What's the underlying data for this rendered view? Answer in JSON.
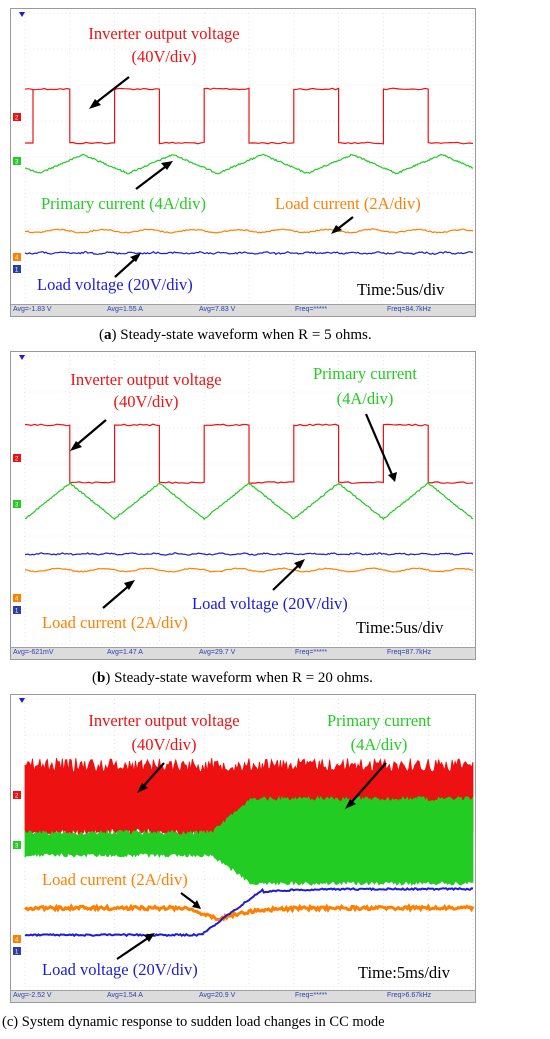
{
  "colors": {
    "voltage": "#ee1111",
    "primary": "#22cc22",
    "load_current": "#ff8000",
    "load_voltage": "#1c1cd0",
    "grid": "#cfcfcf",
    "status_text": "#2a3ea8"
  },
  "panels": [
    {
      "id": "a",
      "caption_tag": "a",
      "caption_text": "Steady-state waveform when R = 5 ohms.",
      "time_label": "Time:5us/div",
      "status": [
        "Avg=-1.83 V",
        "Avg=1.55 A",
        "Avg=7.83 V",
        "Freq=*****",
        "Freq=84.7kHz"
      ],
      "annotations": {
        "inverter": [
          "Inverter output voltage",
          "(40V/div)"
        ],
        "primary": [
          "Primary current (4A/div)"
        ],
        "load_current": [
          "Load current (2A/div)"
        ],
        "load_voltage": [
          "Load voltage (20V/div)"
        ]
      }
    },
    {
      "id": "b",
      "caption_tag": "b",
      "caption_text": "Steady-state waveform when R = 20 ohms.",
      "time_label": "Time:5us/div",
      "status": [
        "Avg=-621mV",
        "Avg=1.47 A",
        "Avg=29.7 V",
        "Freq=*****",
        "Freq=87.7kHz"
      ],
      "annotations": {
        "inverter": [
          "Inverter output voltage",
          "(40V/div)"
        ],
        "primary": [
          "Primary current",
          "(4A/div)"
        ],
        "load_current": [
          "Load current (2A/div)"
        ],
        "load_voltage": [
          "Load voltage (20V/div)"
        ]
      }
    },
    {
      "id": "c",
      "caption_tag": "c",
      "caption_text": "System dynamic response to sudden load changes in CC mode",
      "time_label": "Time:5ms/div",
      "status": [
        "Avg=-2.52 V",
        "Avg=1.54 A",
        "Avg=20.9 V",
        "Freq=*****",
        "Freq>6.67kHz"
      ],
      "annotations": {
        "inverter": [
          "Inverter output voltage",
          "(40V/div)"
        ],
        "primary": [
          "Primary current",
          "(4A/div)"
        ],
        "load_current": [
          "Load current (2A/div)"
        ],
        "load_voltage": [
          "Load voltage (20V/div)"
        ]
      }
    }
  ],
  "chart_data": [
    {
      "type": "line",
      "title": "",
      "xlabel": "Time:5us/div",
      "x_divisions": 10,
      "series": [
        {
          "name": "Inverter output voltage",
          "scale": "40V/div",
          "shape": "square",
          "periods_shown": 5,
          "duty_cycle": 0.5,
          "peak_to_peak_div": 1.0
        },
        {
          "name": "Primary current",
          "scale": "4A/div",
          "shape": "triangle",
          "periods_shown": 5,
          "peak_to_peak_div": 0.5
        },
        {
          "name": "Load current",
          "scale": "2A/div",
          "shape": "dc-with-ripple",
          "level_div": 0.0
        },
        {
          "name": "Load voltage",
          "scale": "20V/div",
          "shape": "dc",
          "level_div": 0.0
        }
      ],
      "measurements": [
        "Avg=-1.83 V",
        "Avg=1.55 A",
        "Avg=7.83 V",
        "Freq=*****",
        "Freq=84.7kHz"
      ]
    },
    {
      "type": "line",
      "title": "",
      "xlabel": "Time:5us/div",
      "x_divisions": 10,
      "series": [
        {
          "name": "Inverter output voltage",
          "scale": "40V/div",
          "shape": "square",
          "periods_shown": 5,
          "duty_cycle": 0.5,
          "peak_to_peak_div": 1.0
        },
        {
          "name": "Primary current",
          "scale": "4A/div",
          "shape": "triangle",
          "periods_shown": 5,
          "peak_to_peak_div": 1.1
        },
        {
          "name": "Load current",
          "scale": "2A/div",
          "shape": "dc-with-ripple",
          "level_div": 0.2
        },
        {
          "name": "Load voltage",
          "scale": "20V/div",
          "shape": "dc",
          "level_div": 0.6
        }
      ],
      "measurements": [
        "Avg=-621mV",
        "Avg=1.47 A",
        "Avg=29.7 V",
        "Freq=*****",
        "Freq=87.7kHz"
      ]
    },
    {
      "type": "line",
      "title": "",
      "xlabel": "Time:5ms/div",
      "x_divisions": 10,
      "series": [
        {
          "name": "Inverter output voltage",
          "scale": "40V/div",
          "shape": "envelope",
          "peak_to_peak_div": 1.4
        },
        {
          "name": "Primary current",
          "scale": "4A/div",
          "shape": "envelope",
          "step_time_div": 4.3,
          "pp_before_div": 0.3,
          "pp_after_div": 1.3
        },
        {
          "name": "Load current",
          "scale": "2A/div",
          "shape": "step-down",
          "step_time_div": 4.1,
          "level_before_div": 0.55,
          "level_after_div": 0.3
        },
        {
          "name": "Load voltage",
          "scale": "20V/div",
          "shape": "step-up",
          "step_time_div": 4.1,
          "level_before_div": 0.0,
          "level_after_div": 0.75
        }
      ],
      "measurements": [
        "Avg=-2.52 V",
        "Avg=1.54 A",
        "Avg=20.9 V",
        "Freq=*****",
        "Freq>6.67kHz"
      ]
    }
  ]
}
